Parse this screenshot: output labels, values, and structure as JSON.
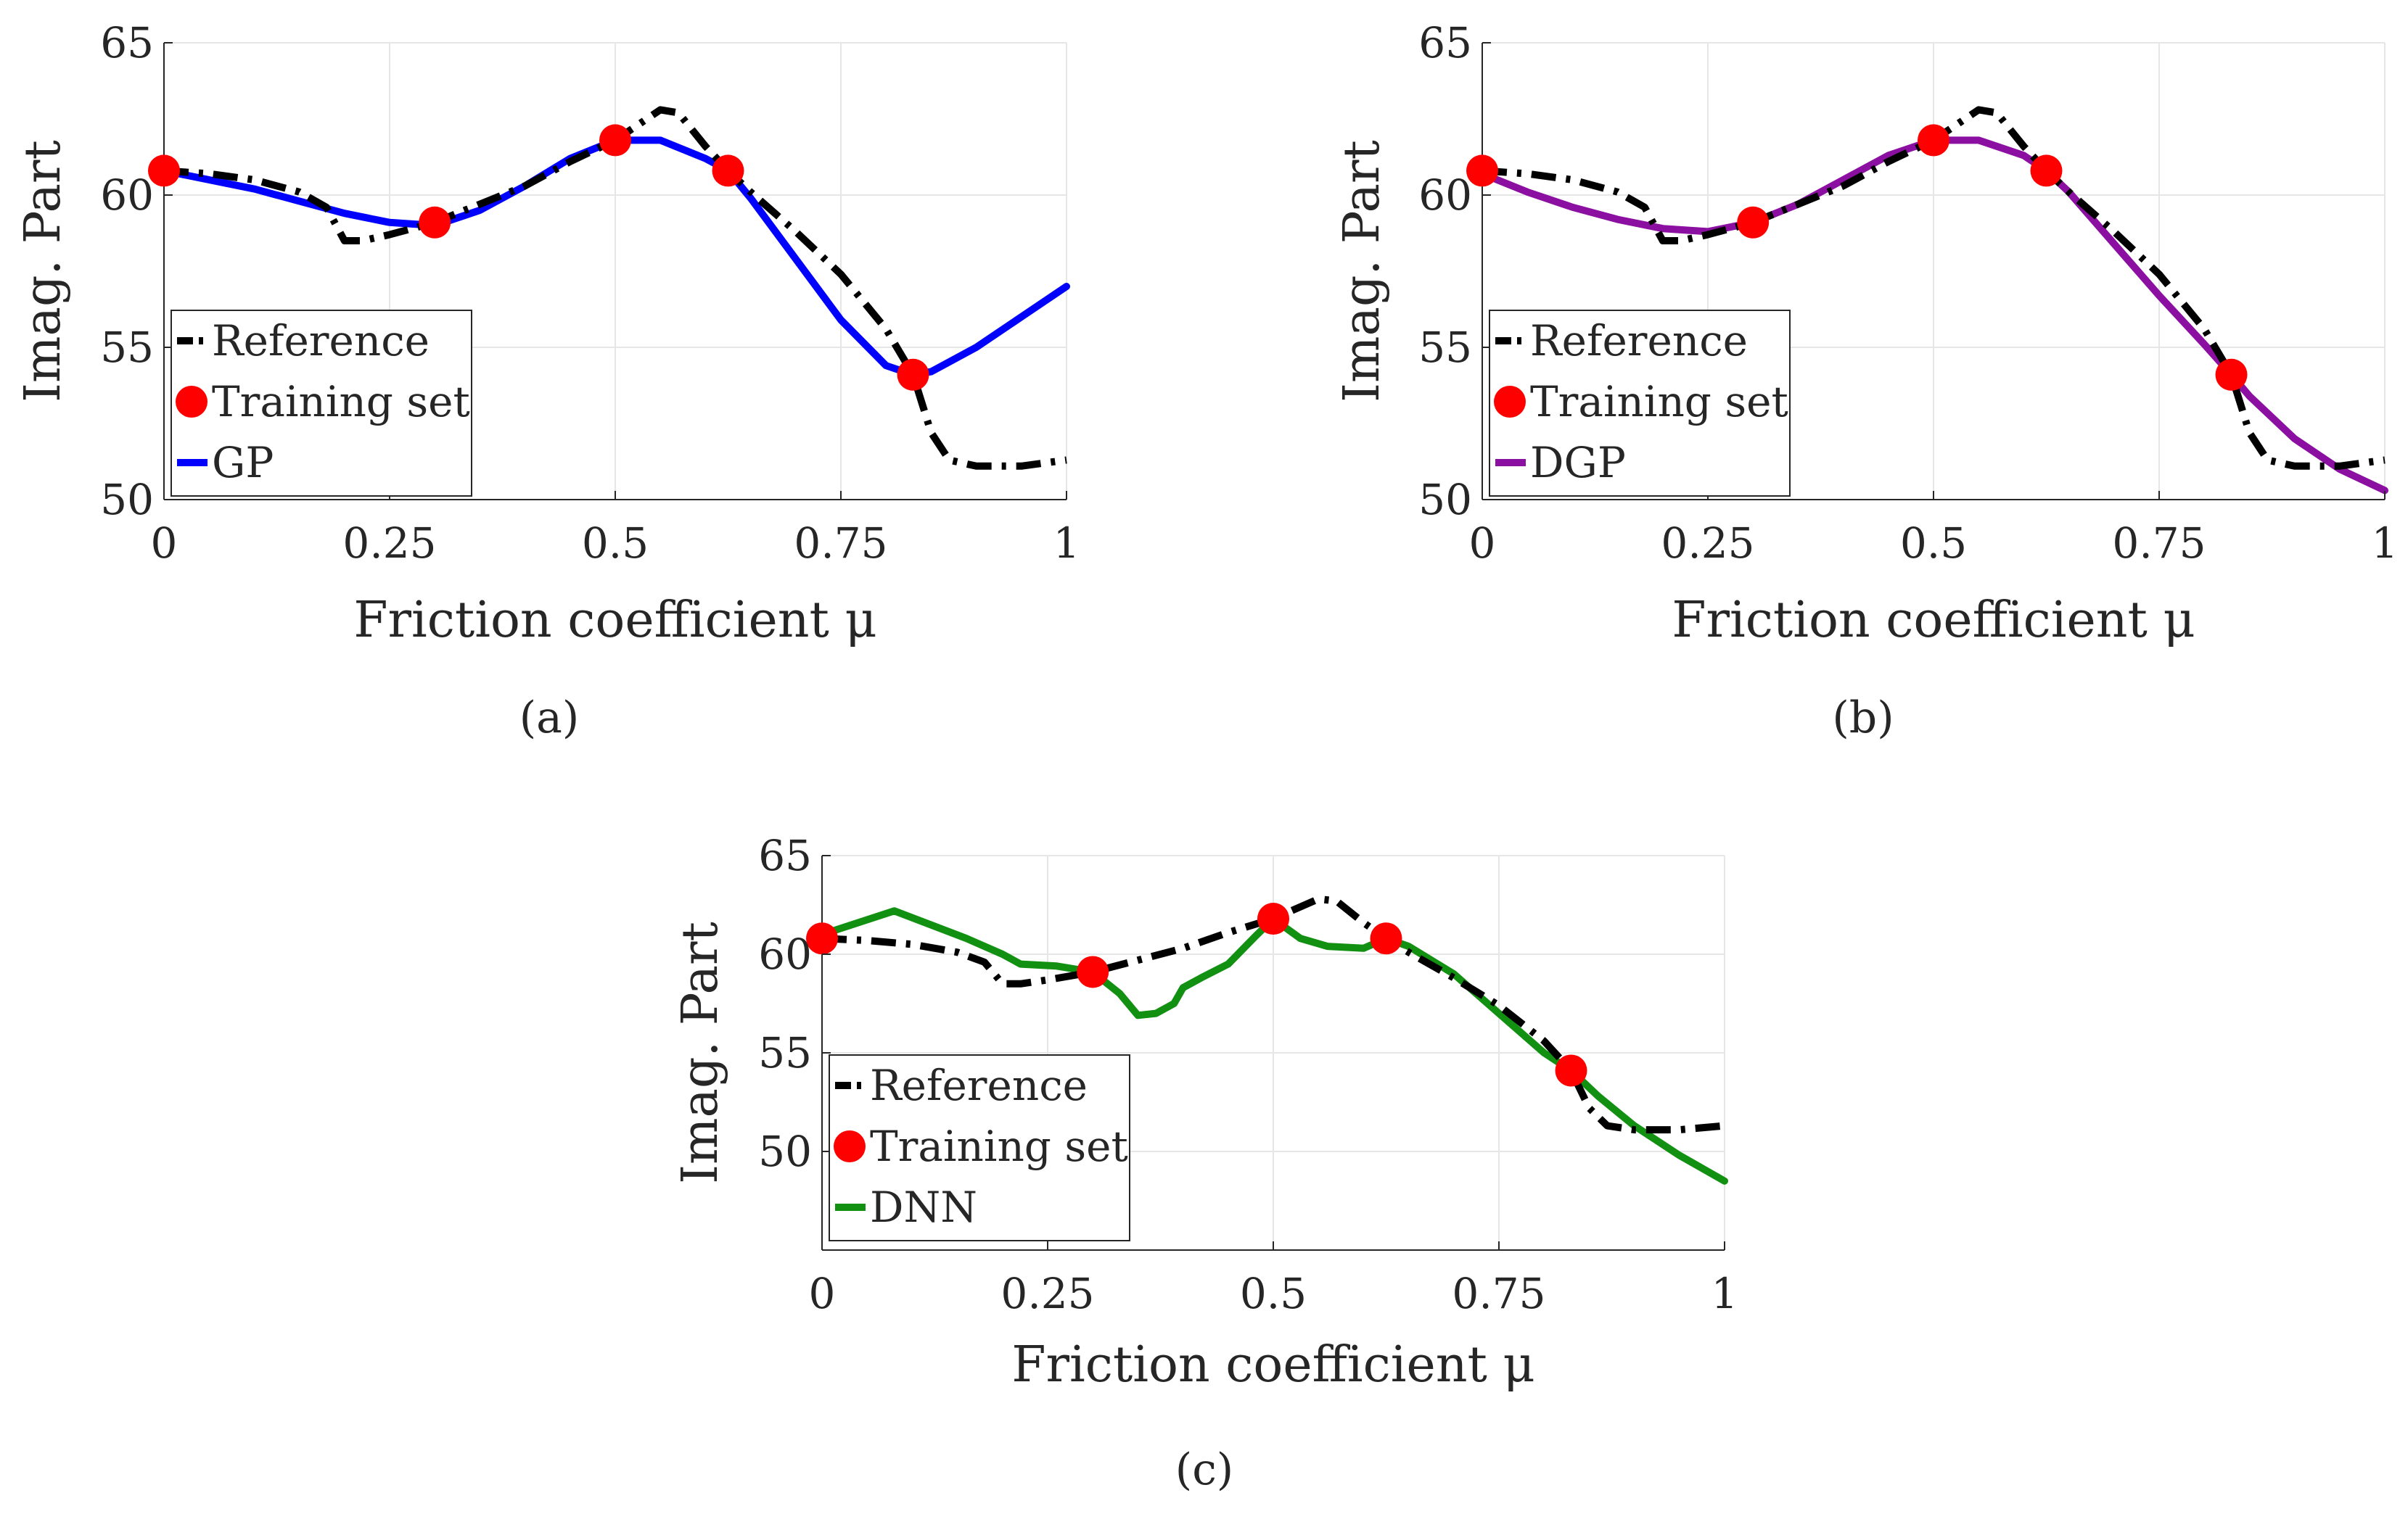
{
  "figure": {
    "chart_data": [
      {
        "panel": "(a)",
        "type": "line",
        "title": "",
        "xlabel": "Friction coefficient μ",
        "ylabel": "Imag. Part",
        "xlim": [
          0,
          1
        ],
        "ylim": [
          50,
          65
        ],
        "xticks": [
          "0",
          "0.25",
          "0.5",
          "0.75",
          "1"
        ],
        "xtick_values": [
          0,
          0.25,
          0.5,
          0.75,
          1
        ],
        "yticks": [
          "50",
          "55",
          "60",
          "65"
        ],
        "ytick_values": [
          50,
          55,
          60,
          65
        ],
        "grid": true,
        "legend_position": "bottom-left",
        "series": [
          {
            "name": "Reference",
            "color": "#000000",
            "style": "dashdot",
            "x": [
              0,
              0.05,
              0.1,
              0.15,
              0.18,
              0.2,
              0.22,
              0.25,
              0.3,
              0.35,
              0.4,
              0.45,
              0.5,
              0.53,
              0.55,
              0.57,
              0.6,
              0.625,
              0.65,
              0.7,
              0.75,
              0.8,
              0.83,
              0.85,
              0.87,
              0.9,
              0.95,
              1
            ],
            "y": [
              60.8,
              60.7,
              60.5,
              60.1,
              59.6,
              58.5,
              58.5,
              58.7,
              59.1,
              59.7,
              60.3,
              61.1,
              61.8,
              62.4,
              62.8,
              62.7,
              61.6,
              60.8,
              60.1,
              58.8,
              57.4,
              55.6,
              54.1,
              52.2,
              51.3,
              51.1,
              51.1,
              51.3
            ]
          },
          {
            "name": "Training set",
            "color": "#ff0000",
            "style": "markers",
            "x": [
              0,
              0.3,
              0.5,
              0.625,
              0.83
            ],
            "y": [
              60.8,
              59.1,
              61.8,
              60.8,
              54.1
            ]
          },
          {
            "name": "GP",
            "color": "#0000ff",
            "style": "solid",
            "x": [
              0,
              0.05,
              0.1,
              0.15,
              0.2,
              0.25,
              0.3,
              0.35,
              0.4,
              0.45,
              0.5,
              0.55,
              0.6,
              0.625,
              0.65,
              0.7,
              0.75,
              0.8,
              0.83,
              0.85,
              0.9,
              0.95,
              1
            ],
            "y": [
              60.8,
              60.5,
              60.2,
              59.8,
              59.4,
              59.1,
              59.0,
              59.5,
              60.3,
              61.2,
              61.8,
              61.8,
              61.2,
              60.8,
              59.9,
              57.9,
              55.9,
              54.4,
              54.1,
              54.2,
              55.0,
              56.0,
              57.0
            ]
          }
        ],
        "legend": [
          "Reference",
          "Training set",
          "GP"
        ]
      },
      {
        "panel": "(b)",
        "type": "line",
        "title": "",
        "xlabel": "Friction coefficient μ",
        "ylabel": "Imag. Part",
        "xlim": [
          0,
          1
        ],
        "ylim": [
          50,
          65
        ],
        "xticks": [
          "0",
          "0.25",
          "0.5",
          "0.75",
          "1"
        ],
        "xtick_values": [
          0,
          0.25,
          0.5,
          0.75,
          1
        ],
        "yticks": [
          "50",
          "55",
          "60",
          "65"
        ],
        "ytick_values": [
          50,
          55,
          60,
          65
        ],
        "grid": true,
        "legend_position": "bottom-left",
        "series": [
          {
            "name": "Reference",
            "color": "#000000",
            "style": "dashdot",
            "x": [
              0,
              0.05,
              0.1,
              0.15,
              0.18,
              0.2,
              0.22,
              0.25,
              0.3,
              0.35,
              0.4,
              0.45,
              0.5,
              0.53,
              0.55,
              0.57,
              0.6,
              0.625,
              0.65,
              0.7,
              0.75,
              0.8,
              0.83,
              0.85,
              0.87,
              0.9,
              0.95,
              1
            ],
            "y": [
              60.8,
              60.7,
              60.5,
              60.1,
              59.6,
              58.5,
              58.5,
              58.7,
              59.1,
              59.7,
              60.3,
              61.1,
              61.8,
              62.4,
              62.8,
              62.7,
              61.6,
              60.8,
              60.1,
              58.8,
              57.4,
              55.6,
              54.1,
              52.2,
              51.3,
              51.1,
              51.1,
              51.3
            ]
          },
          {
            "name": "Training set",
            "color": "#ff0000",
            "style": "markers",
            "x": [
              0,
              0.3,
              0.5,
              0.625,
              0.83
            ],
            "y": [
              60.8,
              59.1,
              61.8,
              60.8,
              54.1
            ]
          },
          {
            "name": "DGP",
            "color": "#8b0fa0",
            "style": "solid",
            "x": [
              0,
              0.05,
              0.1,
              0.15,
              0.2,
              0.25,
              0.3,
              0.35,
              0.4,
              0.45,
              0.5,
              0.55,
              0.6,
              0.625,
              0.65,
              0.7,
              0.75,
              0.8,
              0.83,
              0.85,
              0.9,
              0.95,
              1
            ],
            "y": [
              60.7,
              60.1,
              59.6,
              59.2,
              58.9,
              58.8,
              59.1,
              59.7,
              60.5,
              61.3,
              61.8,
              61.8,
              61.3,
              60.8,
              60.1,
              58.4,
              56.7,
              55.1,
              54.1,
              53.4,
              52.0,
              51.0,
              50.3
            ]
          }
        ],
        "legend": [
          "Reference",
          "Training set",
          "DGP"
        ]
      },
      {
        "panel": "(c)",
        "type": "line",
        "title": "",
        "xlabel": "Friction coefficient μ",
        "ylabel": "Imag. Part",
        "xlim": [
          0,
          1
        ],
        "ylim": [
          45,
          65
        ],
        "xticks": [
          "0",
          "0.25",
          "0.5",
          "0.75",
          "1"
        ],
        "xtick_values": [
          0,
          0.25,
          0.5,
          0.75,
          1
        ],
        "yticks": [
          "50",
          "55",
          "60",
          "65"
        ],
        "ytick_values": [
          50,
          55,
          60,
          65
        ],
        "grid": true,
        "legend_position": "bottom-left",
        "series": [
          {
            "name": "Reference",
            "color": "#000000",
            "style": "dashdot",
            "x": [
              0,
              0.05,
              0.1,
              0.15,
              0.18,
              0.2,
              0.22,
              0.25,
              0.3,
              0.35,
              0.4,
              0.45,
              0.5,
              0.53,
              0.55,
              0.57,
              0.6,
              0.625,
              0.65,
              0.7,
              0.75,
              0.8,
              0.83,
              0.85,
              0.87,
              0.9,
              0.95,
              1
            ],
            "y": [
              60.8,
              60.7,
              60.5,
              60.1,
              59.6,
              58.5,
              58.5,
              58.7,
              59.1,
              59.7,
              60.3,
              61.1,
              61.8,
              62.4,
              62.8,
              62.7,
              61.6,
              60.8,
              60.1,
              58.8,
              57.4,
              55.6,
              54.1,
              52.2,
              51.3,
              51.1,
              51.1,
              51.3
            ]
          },
          {
            "name": "Training set",
            "color": "#ff0000",
            "style": "markers",
            "x": [
              0,
              0.3,
              0.5,
              0.625,
              0.83
            ],
            "y": [
              60.8,
              59.1,
              61.8,
              60.8,
              54.1
            ]
          },
          {
            "name": "DNN",
            "color": "#119011",
            "style": "solid",
            "x": [
              0,
              0.04,
              0.08,
              0.12,
              0.16,
              0.2,
              0.22,
              0.26,
              0.3,
              0.33,
              0.35,
              0.37,
              0.39,
              0.4,
              0.42,
              0.45,
              0.48,
              0.5,
              0.53,
              0.56,
              0.6,
              0.625,
              0.65,
              0.7,
              0.75,
              0.8,
              0.83,
              0.86,
              0.9,
              0.95,
              1
            ],
            "y": [
              61.0,
              61.6,
              62.2,
              61.5,
              60.8,
              60.0,
              59.5,
              59.4,
              59.1,
              58.0,
              56.9,
              57.0,
              57.5,
              58.3,
              58.8,
              59.5,
              60.9,
              61.8,
              60.8,
              60.4,
              60.3,
              60.8,
              60.4,
              59.0,
              57.0,
              55.0,
              54.1,
              52.8,
              51.3,
              49.8,
              48.5
            ]
          }
        ],
        "legend": [
          "Reference",
          "Training set",
          "DNN"
        ]
      }
    ]
  }
}
